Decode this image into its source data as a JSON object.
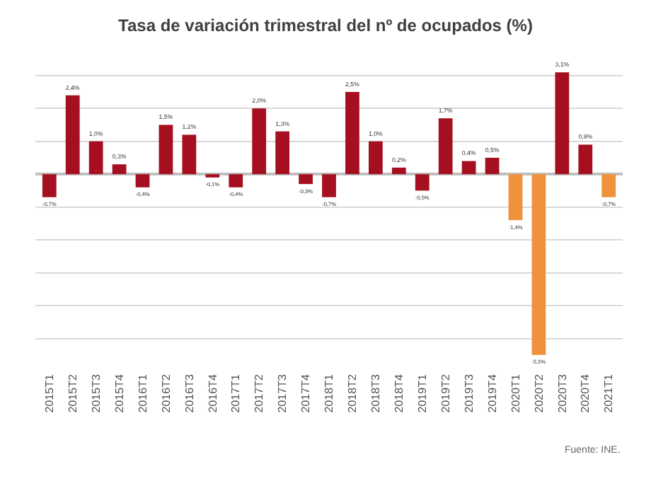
{
  "chart_data": {
    "type": "bar",
    "title": "Tasa de variación trimestral del nº de ocupados (%)",
    "categories": [
      "2015T1",
      "2015T2",
      "2015T3",
      "2015T4",
      "2016T1",
      "2016T2",
      "2016T3",
      "2016T4",
      "2017T1",
      "2017T2",
      "2017T3",
      "2017T4",
      "2018T1",
      "2018T2",
      "2018T3",
      "2018T4",
      "2019T1",
      "2019T2",
      "2019T3",
      "2019T4",
      "2020T1",
      "2020T2",
      "2020T3",
      "2020T4",
      "2021T1"
    ],
    "values": [
      -0.7,
      2.4,
      1.0,
      0.3,
      -0.4,
      1.5,
      1.2,
      -0.1,
      -0.4,
      2.0,
      1.3,
      -0.3,
      -0.7,
      2.5,
      1.0,
      0.2,
      -0.5,
      1.7,
      0.4,
      0.5,
      -1.4,
      -5.5,
      3.1,
      0.9,
      -0.7
    ],
    "value_labels": [
      "-0,7%",
      "2,4%",
      "1,0%",
      "0,3%",
      "-0,4%",
      "1,5%",
      "1,2%",
      "-0,1%",
      "-0,4%",
      "2,0%",
      "1,3%",
      "-0,3%",
      "-0,7%",
      "2,5%",
      "1,0%",
      "0,2%",
      "-0,5%",
      "1,7%",
      "0,4%",
      "0,5%",
      "-1,4%",
      "-5,5%",
      "3,1%",
      "0,9%",
      "-0,7%"
    ],
    "colors": [
      "#a50f1f",
      "#a50f1f",
      "#a50f1f",
      "#a50f1f",
      "#a50f1f",
      "#a50f1f",
      "#a50f1f",
      "#a50f1f",
      "#a50f1f",
      "#a50f1f",
      "#a50f1f",
      "#a50f1f",
      "#a50f1f",
      "#a50f1f",
      "#a50f1f",
      "#a50f1f",
      "#a50f1f",
      "#a50f1f",
      "#a50f1f",
      "#a50f1f",
      "#f0923c",
      "#f0923c",
      "#a50f1f",
      "#a50f1f",
      "#f0923c"
    ],
    "grid": "y",
    "tick_labels": "x",
    "annotations": [
      "Fuente: INE."
    ]
  }
}
